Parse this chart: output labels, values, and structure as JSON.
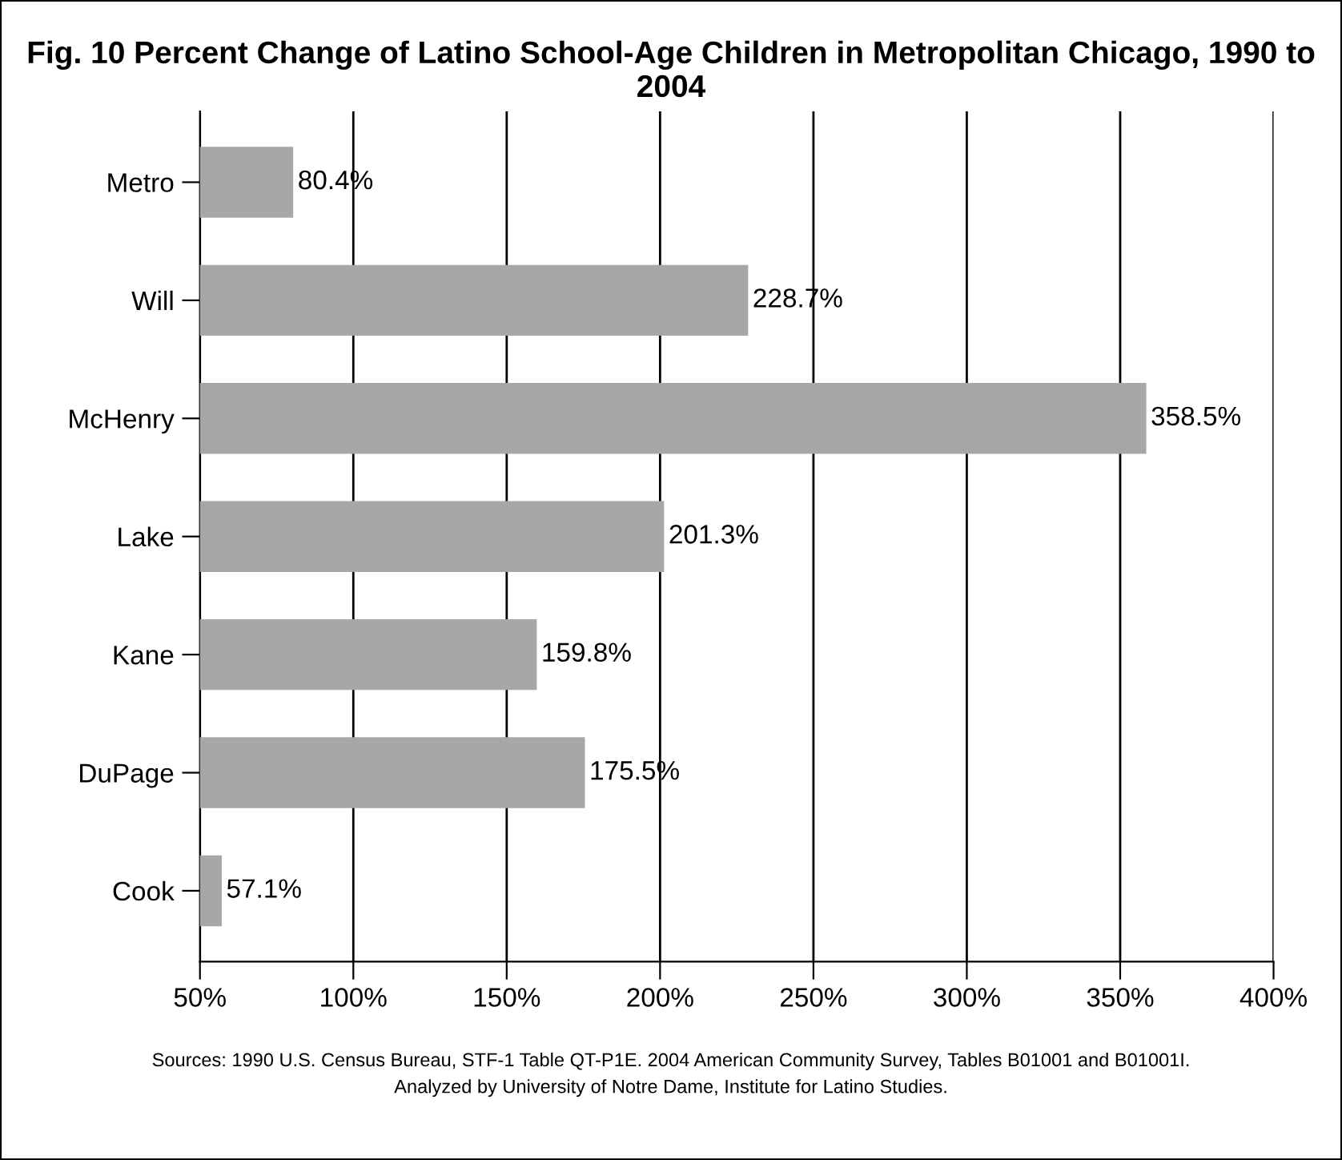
{
  "chart_data": {
    "type": "bar",
    "orientation": "horizontal",
    "title": "Fig. 10 Percent Change of Latino School-Age Children in Metropolitan Chicago, 1990 to 2004",
    "categories": [
      "Metro",
      "Will",
      "McHenry",
      "Lake",
      "Kane",
      "DuPage",
      "Cook"
    ],
    "values": [
      80.4,
      228.7,
      358.5,
      201.3,
      159.8,
      175.5,
      57.1
    ],
    "value_labels": [
      "80.4%",
      "228.7%",
      "358.5%",
      "201.3%",
      "159.8%",
      "175.5%",
      "57.1%"
    ],
    "color": "#a7a7a9",
    "xlim": [
      50,
      400
    ],
    "xticks": [
      {
        "value": 50,
        "label": "50%"
      },
      {
        "value": 100,
        "label": "100%"
      },
      {
        "value": 150,
        "label": "150%"
      },
      {
        "value": 200,
        "label": "200%"
      },
      {
        "value": 250,
        "label": "250%"
      },
      {
        "value": 300,
        "label": "300%"
      },
      {
        "value": 350,
        "label": "350%"
      },
      {
        "value": 400,
        "label": "400%"
      }
    ],
    "grid": "x",
    "annotations": [
      "Sources: 1990 U.S. Census Bureau, STF-1 Table QT-P1E. 2004 American Community Survey, Tables B01001 and B01001I.",
      "Analyzed by University of Notre Dame, Institute for Latino Studies."
    ]
  }
}
